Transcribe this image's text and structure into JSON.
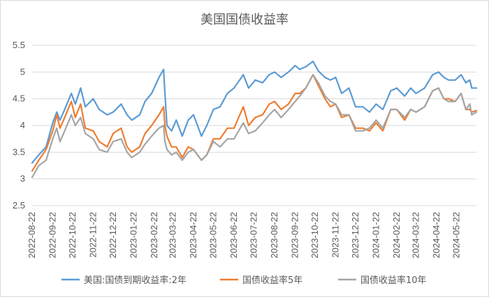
{
  "chart_data": {
    "type": "line",
    "title": "美国国债收益率",
    "ylim": [
      2.5,
      5.5
    ],
    "yticks": [
      2.5,
      3,
      3.5,
      4,
      4.5,
      5,
      5.5
    ],
    "ytick_labels": [
      "2.5",
      "3",
      "3.5",
      "4",
      "4.5",
      "5",
      "5.5"
    ],
    "xlim": [
      "2022-08-22",
      "2024-06-21"
    ],
    "xticks": [
      "2022-08-22",
      "2022-09-22",
      "2022-10-22",
      "2022-11-22",
      "2022-12-22",
      "2023-01-22",
      "2023-02-22",
      "2023-03-22",
      "2023-04-22",
      "2023-05-22",
      "2023-06-22",
      "2023-07-22",
      "2023-08-22",
      "2023-09-22",
      "2023-10-22",
      "2023-11-22",
      "2023-12-22",
      "2024-01-22",
      "2024-02-22",
      "2024-03-22",
      "2024-04-22",
      "2024-05-22"
    ],
    "grid": true,
    "legend_position": "bottom",
    "series": [
      {
        "name": "美国:国债到期收益率:2年",
        "color": "#5b9bd5",
        "points": [
          [
            "2022-08-22",
            3.3
          ],
          [
            "2022-09-01",
            3.45
          ],
          [
            "2022-09-12",
            3.6
          ],
          [
            "2022-09-22",
            4.05
          ],
          [
            "2022-09-28",
            4.25
          ],
          [
            "2022-10-03",
            4.1
          ],
          [
            "2022-10-10",
            4.3
          ],
          [
            "2022-10-20",
            4.6
          ],
          [
            "2022-10-26",
            4.4
          ],
          [
            "2022-11-03",
            4.7
          ],
          [
            "2022-11-10",
            4.35
          ],
          [
            "2022-11-22",
            4.5
          ],
          [
            "2022-12-01",
            4.3
          ],
          [
            "2022-12-13",
            4.2
          ],
          [
            "2022-12-22",
            4.25
          ],
          [
            "2023-01-03",
            4.4
          ],
          [
            "2023-01-12",
            4.2
          ],
          [
            "2023-01-19",
            4.1
          ],
          [
            "2023-01-31",
            4.2
          ],
          [
            "2023-02-08",
            4.45
          ],
          [
            "2023-02-18",
            4.6
          ],
          [
            "2023-03-01",
            4.9
          ],
          [
            "2023-03-08",
            5.05
          ],
          [
            "2023-03-10",
            4.6
          ],
          [
            "2023-03-13",
            4.0
          ],
          [
            "2023-03-20",
            3.9
          ],
          [
            "2023-03-27",
            4.1
          ],
          [
            "2023-04-05",
            3.8
          ],
          [
            "2023-04-14",
            4.1
          ],
          [
            "2023-04-22",
            4.2
          ],
          [
            "2023-05-04",
            3.8
          ],
          [
            "2023-05-12",
            4.0
          ],
          [
            "2023-05-22",
            4.3
          ],
          [
            "2023-06-01",
            4.35
          ],
          [
            "2023-06-12",
            4.6
          ],
          [
            "2023-06-22",
            4.7
          ],
          [
            "2023-07-06",
            4.95
          ],
          [
            "2023-07-14",
            4.7
          ],
          [
            "2023-07-24",
            4.85
          ],
          [
            "2023-08-04",
            4.8
          ],
          [
            "2023-08-14",
            4.95
          ],
          [
            "2023-08-22",
            5.0
          ],
          [
            "2023-09-01",
            4.9
          ],
          [
            "2023-09-12",
            5.0
          ],
          [
            "2023-09-22",
            5.12
          ],
          [
            "2023-09-29",
            5.05
          ],
          [
            "2023-10-08",
            5.1
          ],
          [
            "2023-10-19",
            5.2
          ],
          [
            "2023-10-27",
            5.02
          ],
          [
            "2023-11-06",
            4.9
          ],
          [
            "2023-11-14",
            4.85
          ],
          [
            "2023-11-22",
            4.9
          ],
          [
            "2023-12-01",
            4.6
          ],
          [
            "2023-12-12",
            4.7
          ],
          [
            "2023-12-22",
            4.35
          ],
          [
            "2024-01-02",
            4.35
          ],
          [
            "2024-01-12",
            4.25
          ],
          [
            "2024-01-22",
            4.4
          ],
          [
            "2024-02-01",
            4.3
          ],
          [
            "2024-02-13",
            4.65
          ],
          [
            "2024-02-22",
            4.7
          ],
          [
            "2024-03-05",
            4.55
          ],
          [
            "2024-03-14",
            4.7
          ],
          [
            "2024-03-22",
            4.6
          ],
          [
            "2024-04-04",
            4.7
          ],
          [
            "2024-04-16",
            4.95
          ],
          [
            "2024-04-25",
            5.0
          ],
          [
            "2024-05-03",
            4.9
          ],
          [
            "2024-05-10",
            4.85
          ],
          [
            "2024-05-20",
            4.85
          ],
          [
            "2024-05-29",
            4.95
          ],
          [
            "2024-06-05",
            4.8
          ],
          [
            "2024-06-11",
            4.85
          ],
          [
            "2024-06-14",
            4.7
          ],
          [
            "2024-06-21",
            4.7
          ]
        ]
      },
      {
        "name": "国债收益率5年",
        "color": "#ed7d31",
        "points": [
          [
            "2022-08-22",
            3.15
          ],
          [
            "2022-09-01",
            3.35
          ],
          [
            "2022-09-12",
            3.55
          ],
          [
            "2022-09-22",
            3.9
          ],
          [
            "2022-09-28",
            4.2
          ],
          [
            "2022-10-03",
            3.95
          ],
          [
            "2022-10-10",
            4.15
          ],
          [
            "2022-10-20",
            4.45
          ],
          [
            "2022-10-26",
            4.15
          ],
          [
            "2022-11-03",
            4.4
          ],
          [
            "2022-11-10",
            3.95
          ],
          [
            "2022-11-22",
            3.9
          ],
          [
            "2022-12-01",
            3.7
          ],
          [
            "2022-12-13",
            3.6
          ],
          [
            "2022-12-22",
            3.85
          ],
          [
            "2023-01-03",
            3.95
          ],
          [
            "2023-01-12",
            3.6
          ],
          [
            "2023-01-19",
            3.5
          ],
          [
            "2023-01-31",
            3.6
          ],
          [
            "2023-02-08",
            3.85
          ],
          [
            "2023-02-18",
            4.0
          ],
          [
            "2023-03-01",
            4.2
          ],
          [
            "2023-03-08",
            4.35
          ],
          [
            "2023-03-10",
            4.0
          ],
          [
            "2023-03-13",
            3.8
          ],
          [
            "2023-03-20",
            3.6
          ],
          [
            "2023-03-27",
            3.6
          ],
          [
            "2023-04-05",
            3.4
          ],
          [
            "2023-04-14",
            3.6
          ],
          [
            "2023-04-22",
            3.55
          ],
          [
            "2023-05-04",
            3.35
          ],
          [
            "2023-05-12",
            3.45
          ],
          [
            "2023-05-22",
            3.75
          ],
          [
            "2023-06-01",
            3.75
          ],
          [
            "2023-06-12",
            3.95
          ],
          [
            "2023-06-22",
            3.95
          ],
          [
            "2023-07-06",
            4.35
          ],
          [
            "2023-07-14",
            4.0
          ],
          [
            "2023-07-24",
            4.15
          ],
          [
            "2023-08-04",
            4.2
          ],
          [
            "2023-08-14",
            4.4
          ],
          [
            "2023-08-22",
            4.45
          ],
          [
            "2023-09-01",
            4.3
          ],
          [
            "2023-09-12",
            4.4
          ],
          [
            "2023-09-22",
            4.6
          ],
          [
            "2023-09-29",
            4.6
          ],
          [
            "2023-10-08",
            4.7
          ],
          [
            "2023-10-19",
            4.95
          ],
          [
            "2023-10-27",
            4.75
          ],
          [
            "2023-11-06",
            4.5
          ],
          [
            "2023-11-14",
            4.35
          ],
          [
            "2023-11-22",
            4.4
          ],
          [
            "2023-12-01",
            4.15
          ],
          [
            "2023-12-12",
            4.2
          ],
          [
            "2023-12-22",
            3.95
          ],
          [
            "2024-01-02",
            3.95
          ],
          [
            "2024-01-12",
            3.9
          ],
          [
            "2024-01-22",
            4.05
          ],
          [
            "2024-02-01",
            3.9
          ],
          [
            "2024-02-13",
            4.3
          ],
          [
            "2024-02-22",
            4.3
          ],
          [
            "2024-03-05",
            4.1
          ],
          [
            "2024-03-14",
            4.3
          ],
          [
            "2024-03-22",
            4.25
          ],
          [
            "2024-04-04",
            4.35
          ],
          [
            "2024-04-16",
            4.65
          ],
          [
            "2024-04-25",
            4.7
          ],
          [
            "2024-05-03",
            4.5
          ],
          [
            "2024-05-10",
            4.5
          ],
          [
            "2024-05-20",
            4.45
          ],
          [
            "2024-05-29",
            4.6
          ],
          [
            "2024-06-05",
            4.3
          ],
          [
            "2024-06-11",
            4.3
          ],
          [
            "2024-06-14",
            4.25
          ],
          [
            "2024-06-21",
            4.28
          ]
        ]
      },
      {
        "name": "国债收益率10年",
        "color": "#a5a5a5",
        "points": [
          [
            "2022-08-22",
            3.03
          ],
          [
            "2022-09-01",
            3.25
          ],
          [
            "2022-09-12",
            3.35
          ],
          [
            "2022-09-22",
            3.75
          ],
          [
            "2022-09-28",
            3.95
          ],
          [
            "2022-10-03",
            3.7
          ],
          [
            "2022-10-10",
            3.9
          ],
          [
            "2022-10-20",
            4.2
          ],
          [
            "2022-10-26",
            4.0
          ],
          [
            "2022-11-03",
            4.15
          ],
          [
            "2022-11-10",
            3.85
          ],
          [
            "2022-11-22",
            3.75
          ],
          [
            "2022-12-01",
            3.55
          ],
          [
            "2022-12-13",
            3.5
          ],
          [
            "2022-12-22",
            3.7
          ],
          [
            "2023-01-03",
            3.75
          ],
          [
            "2023-01-12",
            3.5
          ],
          [
            "2023-01-19",
            3.4
          ],
          [
            "2023-01-31",
            3.5
          ],
          [
            "2023-02-08",
            3.65
          ],
          [
            "2023-02-18",
            3.8
          ],
          [
            "2023-03-01",
            3.95
          ],
          [
            "2023-03-08",
            4.0
          ],
          [
            "2023-03-10",
            3.7
          ],
          [
            "2023-03-13",
            3.55
          ],
          [
            "2023-03-20",
            3.45
          ],
          [
            "2023-03-27",
            3.5
          ],
          [
            "2023-04-05",
            3.35
          ],
          [
            "2023-04-14",
            3.5
          ],
          [
            "2023-04-22",
            3.55
          ],
          [
            "2023-05-04",
            3.35
          ],
          [
            "2023-05-12",
            3.45
          ],
          [
            "2023-05-22",
            3.7
          ],
          [
            "2023-06-01",
            3.6
          ],
          [
            "2023-06-12",
            3.75
          ],
          [
            "2023-06-22",
            3.75
          ],
          [
            "2023-07-06",
            4.05
          ],
          [
            "2023-07-14",
            3.85
          ],
          [
            "2023-07-24",
            3.9
          ],
          [
            "2023-08-04",
            4.05
          ],
          [
            "2023-08-14",
            4.2
          ],
          [
            "2023-08-22",
            4.3
          ],
          [
            "2023-09-01",
            4.15
          ],
          [
            "2023-09-12",
            4.3
          ],
          [
            "2023-09-22",
            4.45
          ],
          [
            "2023-09-29",
            4.55
          ],
          [
            "2023-10-08",
            4.7
          ],
          [
            "2023-10-19",
            4.95
          ],
          [
            "2023-10-27",
            4.8
          ],
          [
            "2023-11-06",
            4.55
          ],
          [
            "2023-11-14",
            4.45
          ],
          [
            "2023-11-22",
            4.4
          ],
          [
            "2023-12-01",
            4.2
          ],
          [
            "2023-12-12",
            4.2
          ],
          [
            "2023-12-22",
            3.9
          ],
          [
            "2024-01-02",
            3.9
          ],
          [
            "2024-01-12",
            3.95
          ],
          [
            "2024-01-22",
            4.1
          ],
          [
            "2024-02-01",
            3.95
          ],
          [
            "2024-02-13",
            4.3
          ],
          [
            "2024-02-22",
            4.3
          ],
          [
            "2024-03-05",
            4.15
          ],
          [
            "2024-03-14",
            4.3
          ],
          [
            "2024-03-22",
            4.25
          ],
          [
            "2024-04-04",
            4.35
          ],
          [
            "2024-04-16",
            4.65
          ],
          [
            "2024-04-25",
            4.7
          ],
          [
            "2024-05-03",
            4.5
          ],
          [
            "2024-05-10",
            4.45
          ],
          [
            "2024-05-20",
            4.45
          ],
          [
            "2024-05-29",
            4.6
          ],
          [
            "2024-06-05",
            4.3
          ],
          [
            "2024-06-11",
            4.4
          ],
          [
            "2024-06-14",
            4.2
          ],
          [
            "2024-06-21",
            4.25
          ]
        ]
      }
    ]
  }
}
